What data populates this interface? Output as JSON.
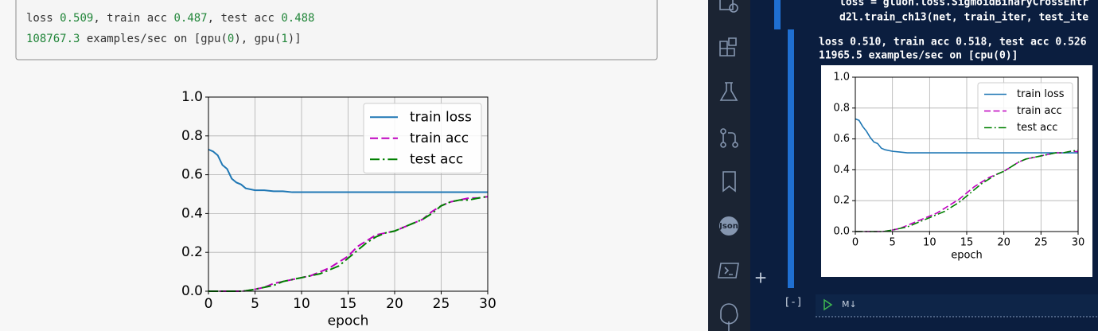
{
  "notebook_left": {
    "output_line1": [
      {
        "text": "loss ",
        "color": "#333333"
      },
      {
        "text": "0.509",
        "color": "#22863a"
      },
      {
        "text": ", train acc ",
        "color": "#333333"
      },
      {
        "text": "0.487",
        "color": "#22863a"
      },
      {
        "text": ", test acc ",
        "color": "#333333"
      },
      {
        "text": "0.488",
        "color": "#22863a"
      }
    ],
    "output_line2": [
      {
        "text": "108767.3",
        "color": "#22863a"
      },
      {
        "text": " examples/sec on [gpu(",
        "color": "#333333"
      },
      {
        "text": "0",
        "color": "#22863a"
      },
      {
        "text": "), gpu(",
        "color": "#333333"
      },
      {
        "text": "1",
        "color": "#22863a"
      },
      {
        "text": ")]",
        "color": "#333333"
      }
    ]
  },
  "notebook_right": {
    "code_line1": "loss = gluon.loss.SigmoidBinaryCrossEntr",
    "code_line2": "d2l.train_ch13(net, train_iter, test_ite",
    "output_line1": "loss 0.510, train acc 0.518, test acc 0.526",
    "output_line2": "11965.5 examples/sec on [cpu(0)]",
    "add_cell": "+",
    "collapse": "[-]",
    "cell_kind": "M↓",
    "sidebar_json": "Json"
  },
  "chart_data": [
    {
      "type": "line",
      "xlabel": "epoch",
      "grid": true,
      "legend": "upper right",
      "x": [
        0,
        0.5,
        1,
        1.5,
        2,
        2.5,
        3,
        3.5,
        4,
        5,
        6,
        7,
        8,
        9,
        10,
        11,
        12,
        13,
        14,
        15,
        16,
        17,
        18,
        19,
        20,
        21,
        22,
        23,
        24,
        25,
        26,
        27,
        28,
        29,
        30
      ],
      "xlim": [
        0,
        30
      ],
      "xticks": [
        0,
        5,
        10,
        15,
        20,
        25,
        30
      ],
      "ylim": [
        0,
        1
      ],
      "yticks": [
        {
          "value": 0,
          "label": "0.0"
        },
        0.2,
        0.4,
        0.6,
        0.8,
        {
          "value": 1,
          "label": "1.0"
        }
      ],
      "series": [
        {
          "name": "train loss",
          "color": "#1f77b4",
          "linestyle": "-",
          "values": [
            0.73,
            0.72,
            0.7,
            0.65,
            0.63,
            0.58,
            0.56,
            0.55,
            0.53,
            0.52,
            0.52,
            0.515,
            0.515,
            0.51,
            0.51,
            0.51,
            0.51,
            0.51,
            0.51,
            0.51,
            0.51,
            0.51,
            0.51,
            0.51,
            0.51,
            0.51,
            0.51,
            0.51,
            0.51,
            0.51,
            0.51,
            0.51,
            0.51,
            0.51,
            0.51
          ]
        },
        {
          "name": "train acc",
          "color": "#bf00bf",
          "linestyle": "--",
          "values": [
            0,
            0,
            0,
            0,
            0,
            0,
            0,
            0,
            0.002,
            0.01,
            0.02,
            0.04,
            0.05,
            0.06,
            0.07,
            0.08,
            0.1,
            0.12,
            0.15,
            0.18,
            0.23,
            0.26,
            0.29,
            0.3,
            0.31,
            0.33,
            0.35,
            0.37,
            0.41,
            0.44,
            0.46,
            0.47,
            0.48,
            0.48,
            0.487
          ]
        },
        {
          "name": "test acc",
          "color": "#008000",
          "linestyle": "-.",
          "values": [
            0,
            0,
            0,
            0,
            0,
            0,
            0,
            0,
            0.002,
            0.01,
            0.02,
            0.03,
            0.05,
            0.06,
            0.07,
            0.08,
            0.09,
            0.11,
            0.13,
            0.17,
            0.21,
            0.25,
            0.28,
            0.3,
            0.31,
            0.33,
            0.35,
            0.37,
            0.4,
            0.44,
            0.46,
            0.47,
            0.47,
            0.48,
            0.488
          ]
        }
      ]
    },
    {
      "type": "line",
      "xlabel": "epoch",
      "grid": true,
      "legend": "upper right",
      "x": [
        0,
        0.5,
        1,
        1.5,
        2,
        2.5,
        3,
        3.5,
        4,
        5,
        6,
        7,
        8,
        9,
        10,
        11,
        12,
        13,
        14,
        15,
        16,
        17,
        18,
        19,
        20,
        21,
        22,
        23,
        24,
        25,
        26,
        27,
        28,
        29,
        30
      ],
      "xlim": [
        0,
        30
      ],
      "xticks": [
        0,
        5,
        10,
        15,
        20,
        25,
        30
      ],
      "ylim": [
        0,
        1
      ],
      "yticks": [
        {
          "value": 0,
          "label": "0.0"
        },
        0.2,
        0.4,
        0.6,
        0.8,
        {
          "value": 1,
          "label": "1.0"
        }
      ],
      "series": [
        {
          "name": "train loss",
          "color": "#1f77b4",
          "linestyle": "-",
          "values": [
            0.73,
            0.72,
            0.68,
            0.65,
            0.61,
            0.58,
            0.57,
            0.54,
            0.53,
            0.52,
            0.515,
            0.51,
            0.51,
            0.51,
            0.51,
            0.51,
            0.51,
            0.51,
            0.51,
            0.51,
            0.51,
            0.51,
            0.51,
            0.51,
            0.51,
            0.51,
            0.51,
            0.51,
            0.51,
            0.51,
            0.51,
            0.51,
            0.51,
            0.51,
            0.51
          ]
        },
        {
          "name": "train acc",
          "color": "#bf00bf",
          "linestyle": "--",
          "values": [
            0,
            0,
            0,
            0,
            0,
            0,
            0,
            0,
            0.002,
            0.01,
            0.02,
            0.04,
            0.06,
            0.08,
            0.1,
            0.12,
            0.15,
            0.18,
            0.21,
            0.25,
            0.29,
            0.32,
            0.35,
            0.37,
            0.39,
            0.42,
            0.45,
            0.47,
            0.48,
            0.49,
            0.5,
            0.51,
            0.51,
            0.52,
            0.518
          ]
        },
        {
          "name": "test acc",
          "color": "#008000",
          "linestyle": "-.",
          "values": [
            0,
            0,
            0,
            0,
            0,
            0,
            0,
            0,
            0.002,
            0.01,
            0.02,
            0.03,
            0.05,
            0.07,
            0.09,
            0.11,
            0.13,
            0.16,
            0.19,
            0.23,
            0.27,
            0.31,
            0.34,
            0.37,
            0.39,
            0.42,
            0.45,
            0.47,
            0.48,
            0.49,
            0.5,
            0.51,
            0.51,
            0.52,
            0.526
          ]
        }
      ]
    }
  ]
}
